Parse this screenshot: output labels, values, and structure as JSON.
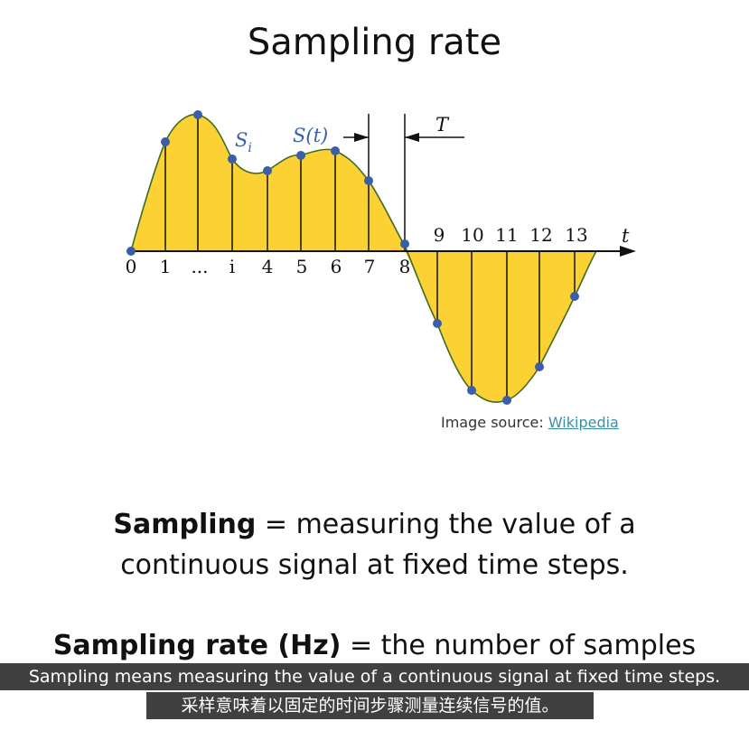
{
  "title": "Sampling rate",
  "diagram": {
    "x_tick_labels": [
      "0",
      "1",
      "...",
      "i",
      "4",
      "5",
      "6",
      "7",
      "8",
      "9",
      "10",
      "11",
      "12",
      "13"
    ],
    "axis_label": "t",
    "sample_label": "S",
    "sample_subscript": "i",
    "signal_label": "S(t)",
    "period_label": "T",
    "fill_color": "#fcd133",
    "curve_color": "#3f6b22",
    "point_color": "#3a5ea8"
  },
  "source": {
    "prefix": "Image source: ",
    "link_text": "Wikipedia"
  },
  "definition1": {
    "term": "Sampling",
    "line1_rest": " =  measuring the value of a",
    "line2": "continuous signal at fixed time steps."
  },
  "definition2": {
    "term": "Sampling rate (Hz)",
    "rest": " = the number of samples"
  },
  "subtitles": {
    "english": "Sampling means measuring the value of a continuous signal at fixed time steps.",
    "chinese": "采样意味着以固定的时间步骤测量连续信号的值。"
  }
}
